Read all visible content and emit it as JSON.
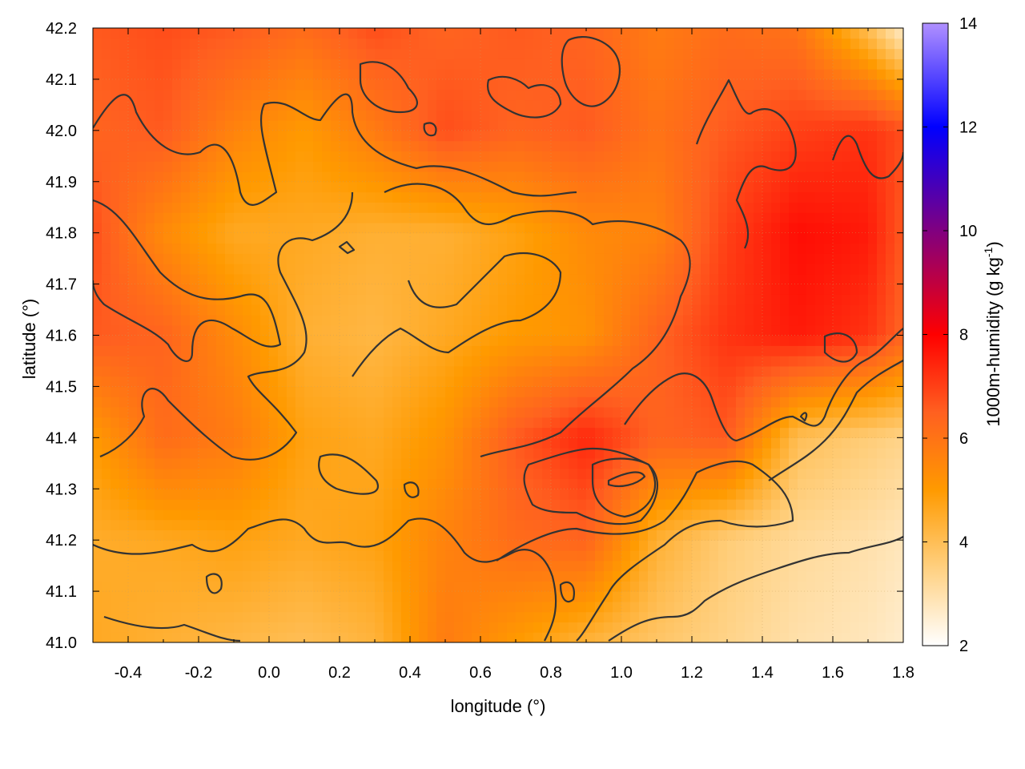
{
  "chart_data": {
    "type": "heatmap",
    "title": "",
    "xlabel": "longitude (°)",
    "ylabel": "latitude (°)",
    "colorbar_label": "1000m-humidity (g kg",
    "colorbar_unit_sup": "-1",
    "colorbar_unit_close": ")",
    "xlim": [
      -0.5,
      1.8
    ],
    "ylim": [
      41.0,
      42.2
    ],
    "clim": [
      2,
      14
    ],
    "x_ticks": [
      -0.4,
      -0.2,
      0.0,
      0.2,
      0.4,
      0.6,
      0.8,
      1.0,
      1.2,
      1.4,
      1.6,
      1.8
    ],
    "x_tick_labels": [
      "-0.4",
      "-0.2",
      "0.0",
      "0.2",
      "0.4",
      "0.6",
      "0.8",
      "1.0",
      "1.2",
      "1.4",
      "1.6",
      "1.8"
    ],
    "y_ticks": [
      41.0,
      41.1,
      41.2,
      41.3,
      41.4,
      41.5,
      41.6,
      41.7,
      41.8,
      41.9,
      42.0,
      42.1,
      42.2
    ],
    "y_tick_labels": [
      "41.0",
      "41.1",
      "41.2",
      "41.3",
      "41.4",
      "41.5",
      "41.6",
      "41.7",
      "41.8",
      "41.9",
      "42.0",
      "42.1",
      "42.2"
    ],
    "colorbar_ticks": [
      2,
      4,
      6,
      8,
      10,
      12,
      14
    ],
    "colorbar_tick_labels": [
      "2",
      "4",
      "6",
      "8",
      "10",
      "12",
      "14"
    ],
    "colormap": [
      "#ffffff",
      "#ffd080",
      "#ff9a00",
      "#ff6020",
      "#ff0000",
      "#800080",
      "#0000ff",
      "#b090ff"
    ],
    "colormap_stops": [
      2,
      3.5,
      5,
      6.5,
      8,
      10,
      12,
      14
    ],
    "grid": true,
    "field_samples": {
      "x": [
        -0.5,
        -0.3,
        -0.1,
        0.1,
        0.3,
        0.5,
        0.7,
        0.9,
        1.1,
        1.3,
        1.5,
        1.7,
        1.8
      ],
      "y": [
        41.0,
        41.2,
        41.4,
        41.6,
        41.8,
        42.0,
        42.2
      ],
      "z": [
        [
          4.6,
          4.4,
          4.2,
          4.0,
          4.3,
          5.8,
          5.0,
          4.3,
          3.8,
          3.4,
          3.0,
          2.8,
          2.6
        ],
        [
          4.5,
          4.6,
          4.8,
          4.6,
          4.8,
          5.6,
          6.2,
          6.4,
          4.4,
          3.6,
          3.2,
          3.0,
          2.8
        ],
        [
          5.0,
          6.2,
          5.8,
          4.8,
          4.6,
          5.2,
          6.6,
          7.4,
          6.4,
          6.6,
          4.0,
          3.6,
          3.4
        ],
        [
          6.6,
          6.4,
          5.4,
          4.4,
          4.2,
          4.6,
          5.0,
          5.2,
          6.4,
          7.2,
          7.6,
          7.2,
          6.4
        ],
        [
          6.8,
          5.4,
          4.6,
          4.6,
          4.4,
          4.4,
          4.8,
          5.4,
          5.6,
          7.0,
          7.8,
          7.6,
          6.6
        ],
        [
          6.4,
          6.6,
          5.6,
          5.0,
          5.8,
          6.8,
          6.4,
          6.6,
          6.0,
          6.6,
          7.0,
          7.2,
          6.8
        ],
        [
          6.6,
          6.8,
          6.6,
          6.2,
          6.8,
          6.4,
          6.6,
          6.4,
          5.8,
          6.2,
          6.0,
          4.0,
          2.6
        ]
      ]
    }
  }
}
